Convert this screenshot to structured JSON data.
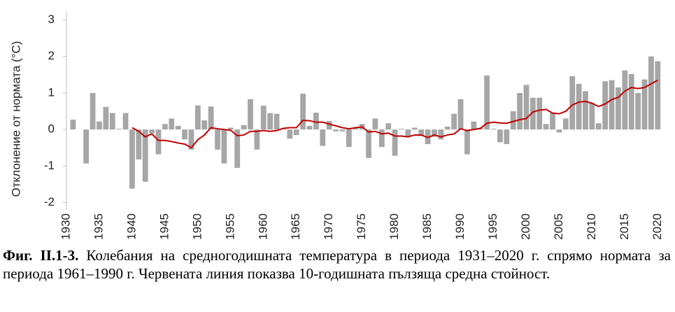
{
  "chart_data": {
    "type": "bar",
    "y_label": "Отклонение от нормата (°C)",
    "caption_label": "Фиг. II.1-3.",
    "caption": "Колебания на средногодишната температура в периода 1931–2020 г. спрямо нормата за периода 1961–1990 г. Червената линия показва 10-годишната пълзяща средна стойност.",
    "x": [
      1931,
      1932,
      1933,
      1934,
      1935,
      1936,
      1937,
      1938,
      1939,
      1940,
      1941,
      1942,
      1943,
      1944,
      1945,
      1946,
      1947,
      1948,
      1949,
      1950,
      1951,
      1952,
      1953,
      1954,
      1955,
      1956,
      1957,
      1958,
      1959,
      1960,
      1961,
      1962,
      1963,
      1964,
      1965,
      1966,
      1967,
      1968,
      1969,
      1970,
      1971,
      1972,
      1973,
      1974,
      1975,
      1976,
      1977,
      1978,
      1979,
      1980,
      1981,
      1982,
      1983,
      1984,
      1985,
      1986,
      1987,
      1988,
      1989,
      1990,
      1991,
      1992,
      1993,
      1994,
      1995,
      1996,
      1997,
      1998,
      1999,
      2000,
      2001,
      2002,
      2003,
      2004,
      2005,
      2006,
      2007,
      2008,
      2009,
      2010,
      2011,
      2012,
      2013,
      2014,
      2015,
      2016,
      2017,
      2018,
      2019,
      2020
    ],
    "series": [
      {
        "type": "bar",
        "color": "#a6a6a6",
        "values": [
          0.27,
          0,
          -0.93,
          1.0,
          0.22,
          0.62,
          0.45,
          0.02,
          0.45,
          -1.62,
          -0.82,
          -1.43,
          -0.1,
          -0.68,
          0.15,
          0.3,
          0.1,
          -0.27,
          -0.55,
          0.66,
          0.25,
          0.63,
          -0.55,
          -0.93,
          0.05,
          -1.05,
          0.12,
          0.83,
          -0.55,
          0.65,
          0.45,
          0.43,
          0.02,
          -0.25,
          -0.15,
          0.98,
          0.1,
          0.46,
          -0.45,
          0.23,
          -0.05,
          -0.05,
          -0.48,
          0.05,
          0.15,
          -0.78,
          0.3,
          -0.48,
          0.17,
          -0.72,
          0.02,
          -0.2,
          0.05,
          -0.18,
          -0.4,
          -0.2,
          -0.27,
          0.08,
          0.43,
          0.83,
          -0.68,
          0.22,
          0.05,
          1.48,
          0.02,
          -0.35,
          -0.4,
          0.5,
          1.0,
          1.22,
          0.87,
          0.87,
          0.15,
          0.45,
          -0.08,
          0.3,
          1.46,
          1.25,
          1.05,
          0.72,
          0.17,
          1.32,
          1.35,
          1.15,
          1.62,
          1.52,
          1.0,
          1.37,
          2.0,
          1.87
        ]
      },
      {
        "type": "line",
        "color": "#c00000",
        "values": [
          null,
          null,
          null,
          null,
          null,
          null,
          null,
          null,
          null,
          0.05,
          -0.05,
          -0.2,
          -0.12,
          -0.3,
          -0.3,
          -0.33,
          -0.37,
          -0.4,
          -0.5,
          -0.28,
          -0.15,
          0.05,
          0.02,
          0.0,
          -0.02,
          -0.17,
          -0.15,
          -0.05,
          -0.05,
          -0.03,
          -0.05,
          -0.03,
          0.03,
          0.05,
          0.05,
          0.25,
          0.24,
          0.2,
          0.2,
          0.15,
          0.1,
          0.05,
          0.02,
          0.05,
          0.07,
          -0.07,
          -0.05,
          -0.12,
          -0.1,
          -0.18,
          -0.18,
          -0.2,
          -0.15,
          -0.15,
          -0.22,
          -0.15,
          -0.2,
          -0.15,
          -0.12,
          0.02,
          -0.03,
          0.0,
          0.03,
          0.17,
          0.2,
          0.18,
          0.17,
          0.22,
          0.27,
          0.3,
          0.48,
          0.53,
          0.55,
          0.45,
          0.43,
          0.5,
          0.67,
          0.75,
          0.77,
          0.72,
          0.63,
          0.7,
          0.82,
          0.88,
          1.05,
          1.15,
          1.12,
          1.15,
          1.25,
          1.35
        ]
      }
    ],
    "xlim": [
      1930,
      2020.5
    ],
    "xticks": [
      1930,
      1935,
      1940,
      1945,
      1950,
      1955,
      1960,
      1965,
      1970,
      1975,
      1980,
      1985,
      1990,
      1995,
      2000,
      2005,
      2010,
      2015,
      2020
    ],
    "ylim": [
      -2.2,
      3.2
    ],
    "yticks": [
      -2,
      -1,
      0,
      1,
      2,
      3
    ]
  }
}
